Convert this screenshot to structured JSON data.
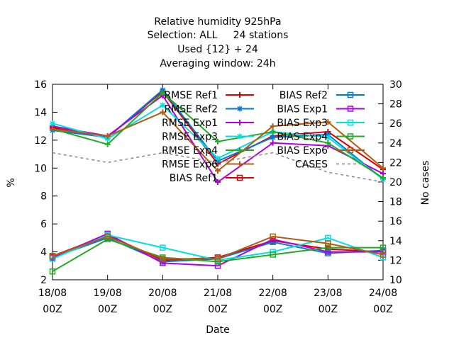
{
  "chart_data": {
    "type": "line",
    "title_lines": [
      "Relative humidity 925hPa",
      "Selection: ALL     24 stations",
      "Used {12} + 24",
      "Averaging window: 24h"
    ],
    "xlabel": "Date",
    "ylabel": "%",
    "y2label": "No cases",
    "x_ticks": [
      {
        "top": "18/08",
        "bottom": "00Z"
      },
      {
        "top": "19/08",
        "bottom": "00Z"
      },
      {
        "top": "20/08",
        "bottom": "00Z"
      },
      {
        "top": "21/08",
        "bottom": "00Z"
      },
      {
        "top": "22/08",
        "bottom": "00Z"
      },
      {
        "top": "23/08",
        "bottom": "00Z"
      },
      {
        "top": "24/08",
        "bottom": "00Z"
      }
    ],
    "ylim": [
      2,
      16
    ],
    "yticks": [
      2,
      4,
      6,
      8,
      10,
      12,
      14,
      16
    ],
    "y2lim": [
      10,
      30
    ],
    "y2ticks": [
      10,
      12,
      14,
      16,
      18,
      20,
      22,
      24,
      26,
      28,
      30
    ],
    "grid": false,
    "legend_position": "top-right",
    "series": [
      {
        "name": "RMSE Ref1",
        "color": "#dd0000",
        "marker": "plus",
        "values": [
          12.9,
          12.2,
          15.5,
          10.3,
          12.3,
          12.6,
          9.9
        ]
      },
      {
        "name": "RMSE Ref2",
        "color": "#0077dd",
        "marker": "star",
        "values": [
          12.7,
          12.2,
          15.6,
          10.5,
          12.2,
          12.4,
          9.2
        ]
      },
      {
        "name": "RMSE Exp1",
        "color": "#b000e0",
        "marker": "plus",
        "values": [
          13.0,
          12.3,
          15.2,
          9.0,
          11.8,
          11.6,
          9.6
        ]
      },
      {
        "name": "RMSE Exp3",
        "color": "#00e0e0",
        "marker": "star",
        "values": [
          13.2,
          12.1,
          14.5,
          10.7,
          12.6,
          12.2,
          9.2
        ]
      },
      {
        "name": "RMSE Exp4",
        "color": "#22aa22",
        "marker": "plus",
        "values": [
          12.8,
          11.7,
          15.4,
          11.9,
          12.6,
          11.8,
          9.3
        ]
      },
      {
        "name": "RMSE Exp6",
        "color": "#b55a10",
        "marker": "plus",
        "values": [
          12.8,
          12.3,
          14.0,
          9.8,
          13.0,
          13.3,
          10.0
        ]
      },
      {
        "name": "BIAS Ref1",
        "color": "#dd0000",
        "marker": "square",
        "values": [
          3.7,
          5.2,
          3.4,
          3.6,
          4.8,
          4.2,
          4.0
        ]
      },
      {
        "name": "BIAS Ref2",
        "color": "#0077dd",
        "marker": "square",
        "values": [
          3.6,
          5.0,
          3.3,
          3.5,
          4.7,
          3.9,
          4.1
        ]
      },
      {
        "name": "BIAS Exp1",
        "color": "#b000e0",
        "marker": "square",
        "values": [
          3.6,
          5.3,
          3.2,
          3.0,
          4.9,
          4.0,
          4.0
        ]
      },
      {
        "name": "BIAS Exp3",
        "color": "#00e0e0",
        "marker": "square",
        "values": [
          3.5,
          5.2,
          4.3,
          3.4,
          4.0,
          5.0,
          3.6
        ]
      },
      {
        "name": "BIAS Exp4",
        "color": "#22aa22",
        "marker": "square",
        "values": [
          2.6,
          4.9,
          3.6,
          3.3,
          3.8,
          4.3,
          4.3
        ]
      },
      {
        "name": "BIAS Exp6",
        "color": "#b55a10",
        "marker": "square",
        "values": [
          3.7,
          5.1,
          3.5,
          3.5,
          5.1,
          4.6,
          3.8
        ]
      },
      {
        "name": "CASES",
        "color": "#888888",
        "marker": "none",
        "dashed": true,
        "axis": "right",
        "values": [
          23,
          22,
          23,
          22,
          23,
          21,
          20
        ]
      }
    ]
  }
}
